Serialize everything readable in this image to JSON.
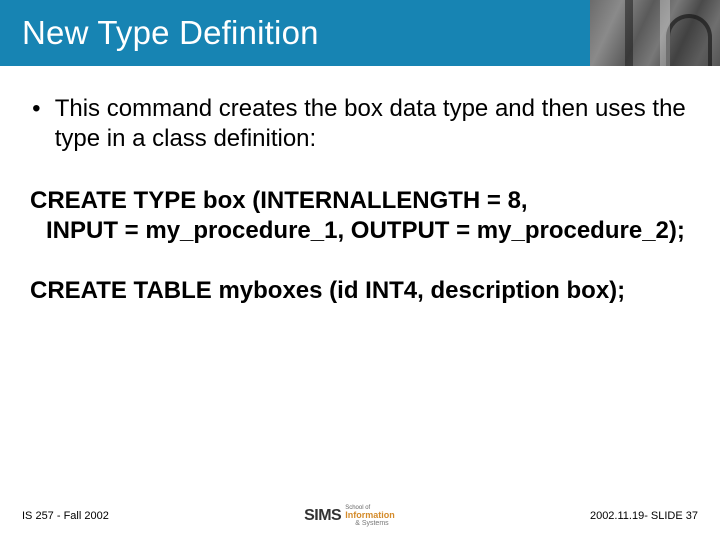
{
  "slide": {
    "title": "New Type Definition",
    "title_bar_color": "#1784b3",
    "title_text_color": "#ffffff",
    "title_fontsize": 33,
    "body_fontsize": 24,
    "body_text_color": "#000000",
    "background_color": "#ffffff",
    "bullet": {
      "text": "This command creates the box data type and then uses the type in a class definition:"
    },
    "code1": {
      "line1": "CREATE TYPE box (INTERNALLENGTH = 8,",
      "line2": " INPUT = my_procedure_1, OUTPUT = my_procedure_2);"
    },
    "code2": {
      "line1": "CREATE TABLE myboxes (id INT4, description box);"
    },
    "footer": {
      "left": "IS 257 - Fall 2002",
      "right": "2002.11.19- SLIDE 37",
      "logo_mark": "SIMS",
      "logo_sub_top": "School of",
      "logo_sub_main": "Information",
      "logo_sub_bot": "& Systems",
      "logo_accent_color": "#d48b2a",
      "fontsize": 11
    }
  }
}
